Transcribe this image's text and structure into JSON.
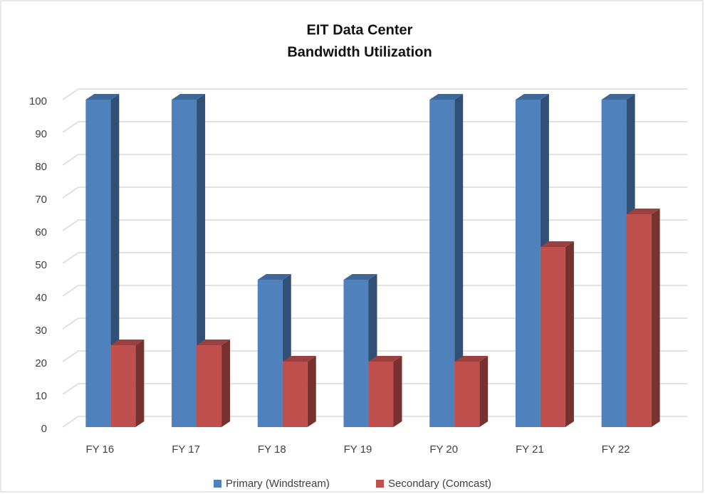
{
  "chart_data": {
    "type": "bar3d",
    "title": [
      "EIT Data Center",
      "Bandwidth Utilization"
    ],
    "categories": [
      "FY 16",
      "FY 17",
      "FY 18",
      "FY 19",
      "FY 20",
      "FY 21",
      "FY 22"
    ],
    "series": [
      {
        "name": "Primary (Windstream)",
        "color": "#4f81bd",
        "values": [
          100,
          100,
          45,
          45,
          100,
          100,
          100
        ]
      },
      {
        "name": "Secondary (Comcast)",
        "color": "#c0504d",
        "values": [
          25,
          25,
          20,
          20,
          20,
          55,
          65
        ]
      }
    ],
    "ylim": [
      0,
      100
    ],
    "yticks": [
      0,
      10,
      20,
      30,
      40,
      50,
      60,
      70,
      80,
      90,
      100
    ],
    "grid": true,
    "legend": "bottom"
  }
}
